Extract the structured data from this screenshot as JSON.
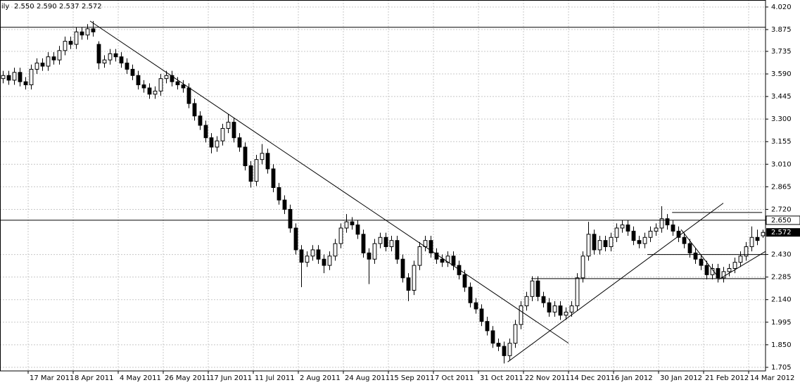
{
  "chart_data": {
    "type": "candlestick",
    "header": "Daily",
    "header_values": [
      "2.550",
      "2.590",
      "2.537",
      "2.572"
    ],
    "xlim": [
      0,
      136
    ],
    "ylim": [
      1.682,
      4.065
    ],
    "yticks": [
      {
        "value": 4.02,
        "label": "4.020"
      },
      3.875,
      3.735,
      {
        "value": 3.59,
        "label": "3.590"
      },
      3.445,
      {
        "value": 3.3,
        "label": "3.300"
      },
      3.155,
      {
        "value": 3.01,
        "label": "3.010"
      },
      2.865,
      {
        "value": 2.72,
        "label": "2.720"
      },
      {
        "value": 2.43,
        "label": "2.430"
      },
      2.285,
      {
        "value": 2.14,
        "label": "2.140"
      },
      1.995,
      {
        "value": 1.85,
        "label": "1.850"
      },
      1.705
    ],
    "xticks": [
      {
        "value": 5,
        "label": "17 Mar 2011"
      },
      {
        "value": 13,
        "label": "8 Apr 2011"
      },
      {
        "value": 21,
        "label": "4 May 2011"
      },
      {
        "value": 29,
        "label": "26 May 2011"
      },
      {
        "value": 37,
        "label": "17 Jun 2011"
      },
      {
        "value": 45,
        "label": "11 Jul 2011"
      },
      {
        "value": 53,
        "label": "2 Aug 2011"
      },
      {
        "value": 61,
        "label": "24 Aug 2011"
      },
      {
        "value": 69,
        "label": "15 Sep 2011"
      },
      {
        "value": 77,
        "label": "7 Oct 2011"
      },
      {
        "value": 85,
        "label": "31 Oct 2011"
      },
      {
        "value": 93,
        "label": "22 Nov 2011"
      },
      {
        "value": 101,
        "label": "14 Dec 2011"
      },
      {
        "value": 109,
        "label": "6 Jan 2012"
      },
      {
        "value": 117,
        "label": "30 Jan 2012"
      },
      {
        "value": 125,
        "label": "21 Feb 2012"
      },
      {
        "value": 133,
        "label": "14 Mar 2012"
      }
    ],
    "grid": true,
    "up_color": "#ffffff",
    "down_color": "#000000",
    "levels": [
      {
        "value": 2.65,
        "label": "2.650"
      }
    ],
    "lines": [
      [
        0,
        3.89,
        136,
        3.89
      ],
      [
        16,
        3.93,
        101,
        1.86
      ],
      [
        90.2,
        1.74,
        128.5,
        2.76
      ],
      [
        119.4,
        2.7,
        135.4,
        2.7
      ],
      [
        115,
        2.43,
        136,
        2.43
      ],
      [
        94.4,
        2.275,
        136,
        2.275
      ],
      [
        121,
        2.59,
        127.7,
        2.28
      ],
      [
        127.7,
        2.27,
        136,
        2.45
      ]
    ],
    "candles": [
      [
        3.56,
        3.61,
        3.53,
        3.58
      ],
      [
        3.58,
        3.61,
        3.52,
        3.55
      ],
      [
        3.55,
        3.63,
        3.52,
        3.6
      ],
      [
        3.6,
        3.63,
        3.51,
        3.54
      ],
      [
        3.54,
        3.57,
        3.49,
        3.52
      ],
      [
        3.52,
        3.65,
        3.49,
        3.62
      ],
      [
        3.62,
        3.69,
        3.59,
        3.66
      ],
      [
        3.66,
        3.69,
        3.61,
        3.64
      ],
      [
        3.64,
        3.73,
        3.61,
        3.7
      ],
      [
        3.7,
        3.73,
        3.65,
        3.68
      ],
      [
        3.68,
        3.77,
        3.65,
        3.74
      ],
      [
        3.74,
        3.83,
        3.71,
        3.8
      ],
      [
        3.8,
        3.83,
        3.75,
        3.78
      ],
      [
        3.78,
        3.89,
        3.75,
        3.86
      ],
      [
        3.86,
        3.89,
        3.81,
        3.84
      ],
      [
        3.84,
        3.91,
        3.81,
        3.88
      ],
      [
        3.88,
        3.93,
        3.83,
        3.86
      ],
      [
        3.78,
        3.8,
        3.62,
        3.66
      ],
      [
        3.66,
        3.71,
        3.63,
        3.68
      ],
      [
        3.68,
        3.75,
        3.65,
        3.72
      ],
      [
        3.72,
        3.75,
        3.67,
        3.7
      ],
      [
        3.7,
        3.73,
        3.63,
        3.66
      ],
      [
        3.66,
        3.69,
        3.59,
        3.62
      ],
      [
        3.62,
        3.65,
        3.55,
        3.58
      ],
      [
        3.58,
        3.61,
        3.49,
        3.52
      ],
      [
        3.52,
        3.55,
        3.47,
        3.5
      ],
      [
        3.5,
        3.53,
        3.43,
        3.46
      ],
      [
        3.46,
        3.51,
        3.43,
        3.48
      ],
      [
        3.48,
        3.59,
        3.45,
        3.56
      ],
      [
        3.56,
        3.61,
        3.53,
        3.58
      ],
      [
        3.58,
        3.61,
        3.51,
        3.54
      ],
      [
        3.54,
        3.57,
        3.49,
        3.52
      ],
      [
        3.52,
        3.55,
        3.47,
        3.5
      ],
      [
        3.5,
        3.53,
        3.37,
        3.4
      ],
      [
        3.4,
        3.43,
        3.29,
        3.32
      ],
      [
        3.32,
        3.35,
        3.23,
        3.26
      ],
      [
        3.26,
        3.29,
        3.15,
        3.18
      ],
      [
        3.18,
        3.21,
        3.08,
        3.12
      ],
      [
        3.12,
        3.19,
        3.09,
        3.16
      ],
      [
        3.16,
        3.27,
        3.13,
        3.24
      ],
      [
        3.24,
        3.33,
        3.21,
        3.28
      ],
      [
        3.28,
        3.31,
        3.15,
        3.18
      ],
      [
        3.18,
        3.21,
        3.09,
        3.12
      ],
      [
        3.12,
        3.15,
        2.97,
        3.0
      ],
      [
        3.0,
        3.03,
        2.86,
        2.9
      ],
      [
        2.9,
        3.07,
        2.87,
        3.04
      ],
      [
        3.04,
        3.14,
        3.01,
        3.08
      ],
      [
        3.08,
        3.11,
        2.95,
        2.98
      ],
      [
        2.98,
        3.01,
        2.83,
        2.86
      ],
      [
        2.86,
        2.89,
        2.75,
        2.78
      ],
      [
        2.78,
        2.81,
        2.69,
        2.72
      ],
      [
        2.72,
        2.75,
        2.57,
        2.6
      ],
      [
        2.6,
        2.63,
        2.43,
        2.46
      ],
      [
        2.46,
        2.49,
        2.22,
        2.38
      ],
      [
        2.38,
        2.45,
        2.35,
        2.42
      ],
      [
        2.42,
        2.49,
        2.39,
        2.46
      ],
      [
        2.46,
        2.49,
        2.37,
        2.4
      ],
      [
        2.4,
        2.43,
        2.31,
        2.36
      ],
      [
        2.36,
        2.45,
        2.33,
        2.42
      ],
      [
        2.42,
        2.53,
        2.39,
        2.5
      ],
      [
        2.5,
        2.63,
        2.47,
        2.6
      ],
      [
        2.6,
        2.69,
        2.57,
        2.64
      ],
      [
        2.64,
        2.67,
        2.59,
        2.62
      ],
      [
        2.62,
        2.65,
        2.53,
        2.56
      ],
      [
        2.56,
        2.59,
        2.41,
        2.44
      ],
      [
        2.44,
        2.47,
        2.24,
        2.4
      ],
      [
        2.4,
        2.53,
        2.37,
        2.5
      ],
      [
        2.5,
        2.57,
        2.47,
        2.54
      ],
      [
        2.54,
        2.57,
        2.45,
        2.48
      ],
      [
        2.48,
        2.55,
        2.45,
        2.52
      ],
      [
        2.52,
        2.55,
        2.37,
        2.4
      ],
      [
        2.4,
        2.43,
        2.25,
        2.28
      ],
      [
        2.28,
        2.31,
        2.13,
        2.2
      ],
      [
        2.2,
        2.39,
        2.17,
        2.36
      ],
      [
        2.36,
        2.51,
        2.33,
        2.48
      ],
      [
        2.48,
        2.55,
        2.45,
        2.52
      ],
      [
        2.52,
        2.55,
        2.41,
        2.44
      ],
      [
        2.44,
        2.47,
        2.37,
        2.4
      ],
      [
        2.4,
        2.43,
        2.35,
        2.38
      ],
      [
        2.38,
        2.45,
        2.35,
        2.42
      ],
      [
        2.42,
        2.45,
        2.33,
        2.36
      ],
      [
        2.36,
        2.39,
        2.27,
        2.3
      ],
      [
        2.3,
        2.33,
        2.19,
        2.22
      ],
      [
        2.22,
        2.25,
        2.09,
        2.12
      ],
      [
        2.12,
        2.15,
        2.05,
        2.08
      ],
      [
        2.08,
        2.11,
        1.97,
        2.0
      ],
      [
        2.0,
        2.03,
        1.91,
        1.94
      ],
      [
        1.94,
        1.97,
        1.83,
        1.86
      ],
      [
        1.86,
        1.89,
        1.81,
        1.84
      ],
      [
        1.84,
        1.87,
        1.73,
        1.78
      ],
      [
        1.78,
        1.89,
        1.75,
        1.86
      ],
      [
        1.86,
        2.01,
        1.83,
        1.98
      ],
      [
        1.98,
        2.13,
        1.95,
        2.1
      ],
      [
        2.1,
        2.19,
        2.07,
        2.16
      ],
      [
        2.16,
        2.29,
        2.13,
        2.26
      ],
      [
        2.26,
        2.29,
        2.13,
        2.16
      ],
      [
        2.16,
        2.19,
        2.09,
        2.12
      ],
      [
        2.12,
        2.15,
        2.03,
        2.06
      ],
      [
        2.06,
        2.13,
        2.03,
        2.1
      ],
      [
        2.1,
        2.13,
        2.01,
        2.04
      ],
      [
        2.04,
        2.09,
        2.01,
        2.06
      ],
      [
        2.06,
        2.13,
        2.03,
        2.1
      ],
      [
        2.1,
        2.31,
        2.07,
        2.28
      ],
      [
        2.28,
        2.45,
        2.25,
        2.42
      ],
      [
        2.42,
        2.64,
        2.39,
        2.56
      ],
      [
        2.56,
        2.59,
        2.43,
        2.46
      ],
      [
        2.46,
        2.55,
        2.43,
        2.52
      ],
      [
        2.52,
        2.55,
        2.45,
        2.48
      ],
      [
        2.48,
        2.57,
        2.45,
        2.54
      ],
      [
        2.54,
        2.63,
        2.51,
        2.6
      ],
      [
        2.6,
        2.65,
        2.57,
        2.62
      ],
      [
        2.62,
        2.65,
        2.55,
        2.58
      ],
      [
        2.58,
        2.61,
        2.49,
        2.52
      ],
      [
        2.52,
        2.55,
        2.47,
        2.5
      ],
      [
        2.5,
        2.57,
        2.47,
        2.54
      ],
      [
        2.54,
        2.61,
        2.51,
        2.58
      ],
      [
        2.58,
        2.63,
        2.55,
        2.6
      ],
      [
        2.6,
        2.74,
        2.57,
        2.66
      ],
      [
        2.66,
        2.69,
        2.59,
        2.62
      ],
      [
        2.62,
        2.65,
        2.55,
        2.58
      ],
      [
        2.58,
        2.61,
        2.51,
        2.54
      ],
      [
        2.54,
        2.57,
        2.47,
        2.5
      ],
      [
        2.5,
        2.53,
        2.41,
        2.44
      ],
      [
        2.44,
        2.47,
        2.37,
        2.4
      ],
      [
        2.4,
        2.43,
        2.33,
        2.36
      ],
      [
        2.36,
        2.39,
        2.27,
        2.3
      ],
      [
        2.3,
        2.37,
        2.27,
        2.34
      ],
      [
        2.34,
        2.37,
        2.25,
        2.28
      ],
      [
        2.28,
        2.35,
        2.25,
        2.32
      ],
      [
        2.32,
        2.37,
        2.29,
        2.34
      ],
      [
        2.34,
        2.41,
        2.31,
        2.38
      ],
      [
        2.38,
        2.45,
        2.35,
        2.42
      ],
      [
        2.42,
        2.51,
        2.39,
        2.48
      ],
      [
        2.48,
        2.61,
        2.45,
        2.54
      ],
      [
        2.54,
        2.59,
        2.49,
        2.52
      ],
      [
        2.55,
        2.59,
        2.537,
        2.572
      ]
    ]
  }
}
